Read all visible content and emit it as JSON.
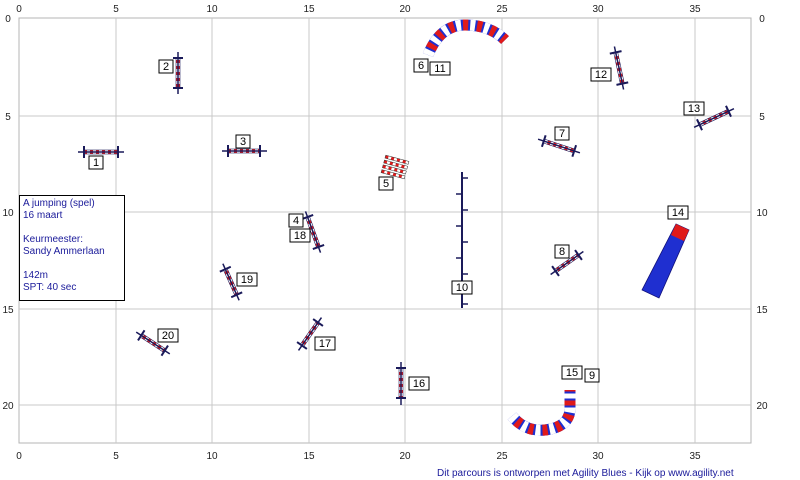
{
  "axes": {
    "x_ticks": [
      "0",
      "5",
      "10",
      "15",
      "20",
      "25",
      "30",
      "35"
    ],
    "y_ticks": [
      "0",
      "5",
      "10",
      "15",
      "20"
    ]
  },
  "info": {
    "line1": "A jumping (spel)",
    "line2": "16 maart",
    "line3": "Keurmeester:",
    "line4": "Sandy Ammerlaan",
    "line5": "142m",
    "line6": "SPT: 40 sec"
  },
  "obstacle_labels": {
    "n1": "1",
    "n2": "2",
    "n3": "3",
    "n4": "4",
    "n5": "5",
    "n6": "6",
    "n7": "7",
    "n8": "8",
    "n9": "9",
    "n10": "10",
    "n11": "11",
    "n12": "12",
    "n13": "13",
    "n14": "14",
    "n15": "15",
    "n16": "16",
    "n17": "17",
    "n18": "18",
    "n19": "19",
    "n20": "20"
  },
  "credit": "Dit parcours is ontworpen met Agility Blues - Kijk op www.agility.net",
  "colors": {
    "grid": "#c8c8c8",
    "pole_dark": "#1a1a5a",
    "tunnel_blue": "#1f2fd0",
    "tunnel_red": "#e01a1a",
    "text_blue": "#1a1a9a"
  }
}
